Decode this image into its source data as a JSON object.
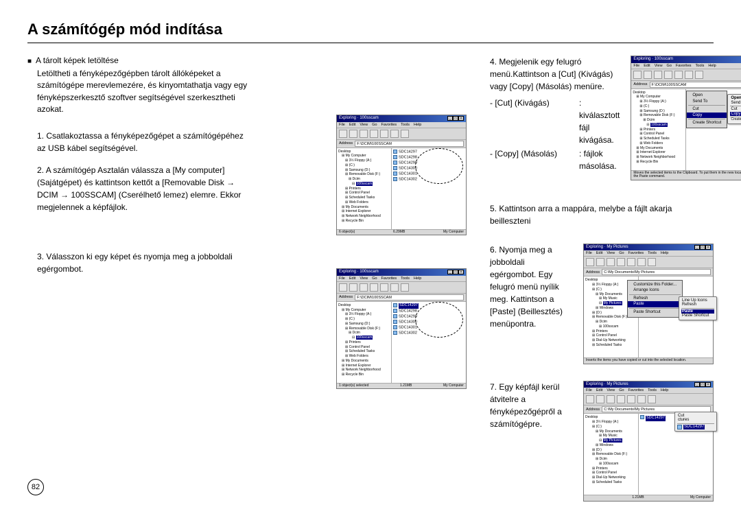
{
  "title": "A számítógép mód indítása",
  "section_label": "A tárolt képek letöltése",
  "intro": "Letöltheti a fényképezőgépben tárolt állóképeket a számítógépe merevlemezére, és kinyomtathatja vagy egy fényképszerkesztő szoftver segítségével szerkesztheti azokat.",
  "steps": {
    "s1": "Csatlakoztassa a fényképezőgépet a számítógépéhez az USB kábel segítségével.",
    "s2": "A számítógép Asztalán válassza a [My computer] (Sajátgépet) és kattintson kettőt a [Removable Disk → DCIM → 100SSCAM] (Cserélhető lemez) elemre. Ekkor megjelennek a képfájlok.",
    "s3": "Válasszon ki egy képet és nyomja meg a jobboldali egérgombot.",
    "s4": "Megjelenik egy felugró menü.Kattintson a [Cut] (Kivágás) vagy [Copy] (Másolás) menüre.",
    "s4_cut_label": "- [Cut] (Kivágás)",
    "s4_cut_val": ": kiválasztott fájl kivágása.",
    "s4_copy_label": "- [Copy] (Másolás)",
    "s4_copy_val": ": fájlok másolása.",
    "s5": "Kattintson arra a mappára, melybe a fájlt akarja beilleszteni",
    "s6": "Nyomja meg a jobboldali egérgombot. Egy felugró menü nyílik meg. Kattintson a [Paste] (Beillesztés) menüpontra.",
    "s7": "Egy képfájl kerül átvitelre a fényképezőgépről a számítógépre."
  },
  "explorer": {
    "title_100": "Exploring · 100sscam",
    "title_myp": "Exploring · My Pictures",
    "menu": [
      "File",
      "Edit",
      "View",
      "Go",
      "Favorites",
      "Tools",
      "Help"
    ],
    "address_label": "Address",
    "address_100": "F:\\DCIM\\100SSCAM",
    "address_myp": "C:\\My Documents\\My Pictures",
    "tree": [
      {
        "t": "Desktop",
        "i": 0
      },
      {
        "t": "My Computer",
        "i": 1
      },
      {
        "t": "3½ Floppy (A:)",
        "i": 2
      },
      {
        "t": "(C:)",
        "i": 2
      },
      {
        "t": "Samsung (D:)",
        "i": 2
      },
      {
        "t": "Removable Disk (F:)",
        "i": 2
      },
      {
        "t": "Dcim",
        "i": 3
      },
      {
        "t": "100sscam",
        "i": 4
      },
      {
        "t": "Printers",
        "i": 2
      },
      {
        "t": "Control Panel",
        "i": 2
      },
      {
        "t": "Scheduled Tasks",
        "i": 2
      },
      {
        "t": "Web Folders",
        "i": 2
      },
      {
        "t": "My Documents",
        "i": 1
      },
      {
        "t": "Internet Explorer",
        "i": 1
      },
      {
        "t": "Network Neighborhood",
        "i": 1
      },
      {
        "t": "Recycle Bin",
        "i": 1
      }
    ],
    "tree_myp": [
      {
        "t": "Desktop",
        "i": 0
      },
      {
        "t": "3½ Floppy (A:)",
        "i": 2
      },
      {
        "t": "(C:)",
        "i": 2
      },
      {
        "t": "My Documents",
        "i": 3
      },
      {
        "t": "My Music",
        "i": 4
      },
      {
        "t": "My Pictures",
        "i": 4
      },
      {
        "t": "Windows",
        "i": 3
      },
      {
        "t": "(D:)",
        "i": 2
      },
      {
        "t": "Removable Disk (F:)",
        "i": 2
      },
      {
        "t": "Dcim",
        "i": 3
      },
      {
        "t": "100sscam",
        "i": 4
      },
      {
        "t": "Printers",
        "i": 2
      },
      {
        "t": "Control Panel",
        "i": 2
      },
      {
        "t": "Dial-Up Networking",
        "i": 2
      },
      {
        "t": "Scheduled Tasks",
        "i": 2
      }
    ],
    "files": [
      "SDC14297",
      "SDC14298",
      "SDC14299",
      "SDC14300",
      "SDC14301",
      "SDC14302"
    ],
    "status_left": "6 object(s)",
    "status_left_sel": "1 object(s) selected",
    "status_mid": "6.29MB",
    "status_mid2": "1.21MB",
    "status_right": "My Computer"
  },
  "ctx_open": {
    "items": [
      "Open",
      "Send To",
      "Cut",
      "Copy",
      "Create Shortcut"
    ],
    "hl": "Copy"
  },
  "ctx_paste": {
    "items": [
      "Customize this Folder...",
      "Arrange Icons",
      "Refresh",
      "Paste",
      "Paste Shortcut"
    ],
    "hl": "Paste",
    "callout_items": [
      "Line Up Icons",
      "Refresh",
      "Paste",
      "Paste Shortcut"
    ]
  },
  "ctx_cut": {
    "items": [
      "Cut",
      "Copy"
    ],
    "file_badge": "SDC14297"
  },
  "fig_files_highlight": [
    "SDC14297",
    "SDC14298",
    "SDC14299",
    "SDC14300",
    "SDC14301",
    "SDC14302"
  ],
  "page_number": "82"
}
